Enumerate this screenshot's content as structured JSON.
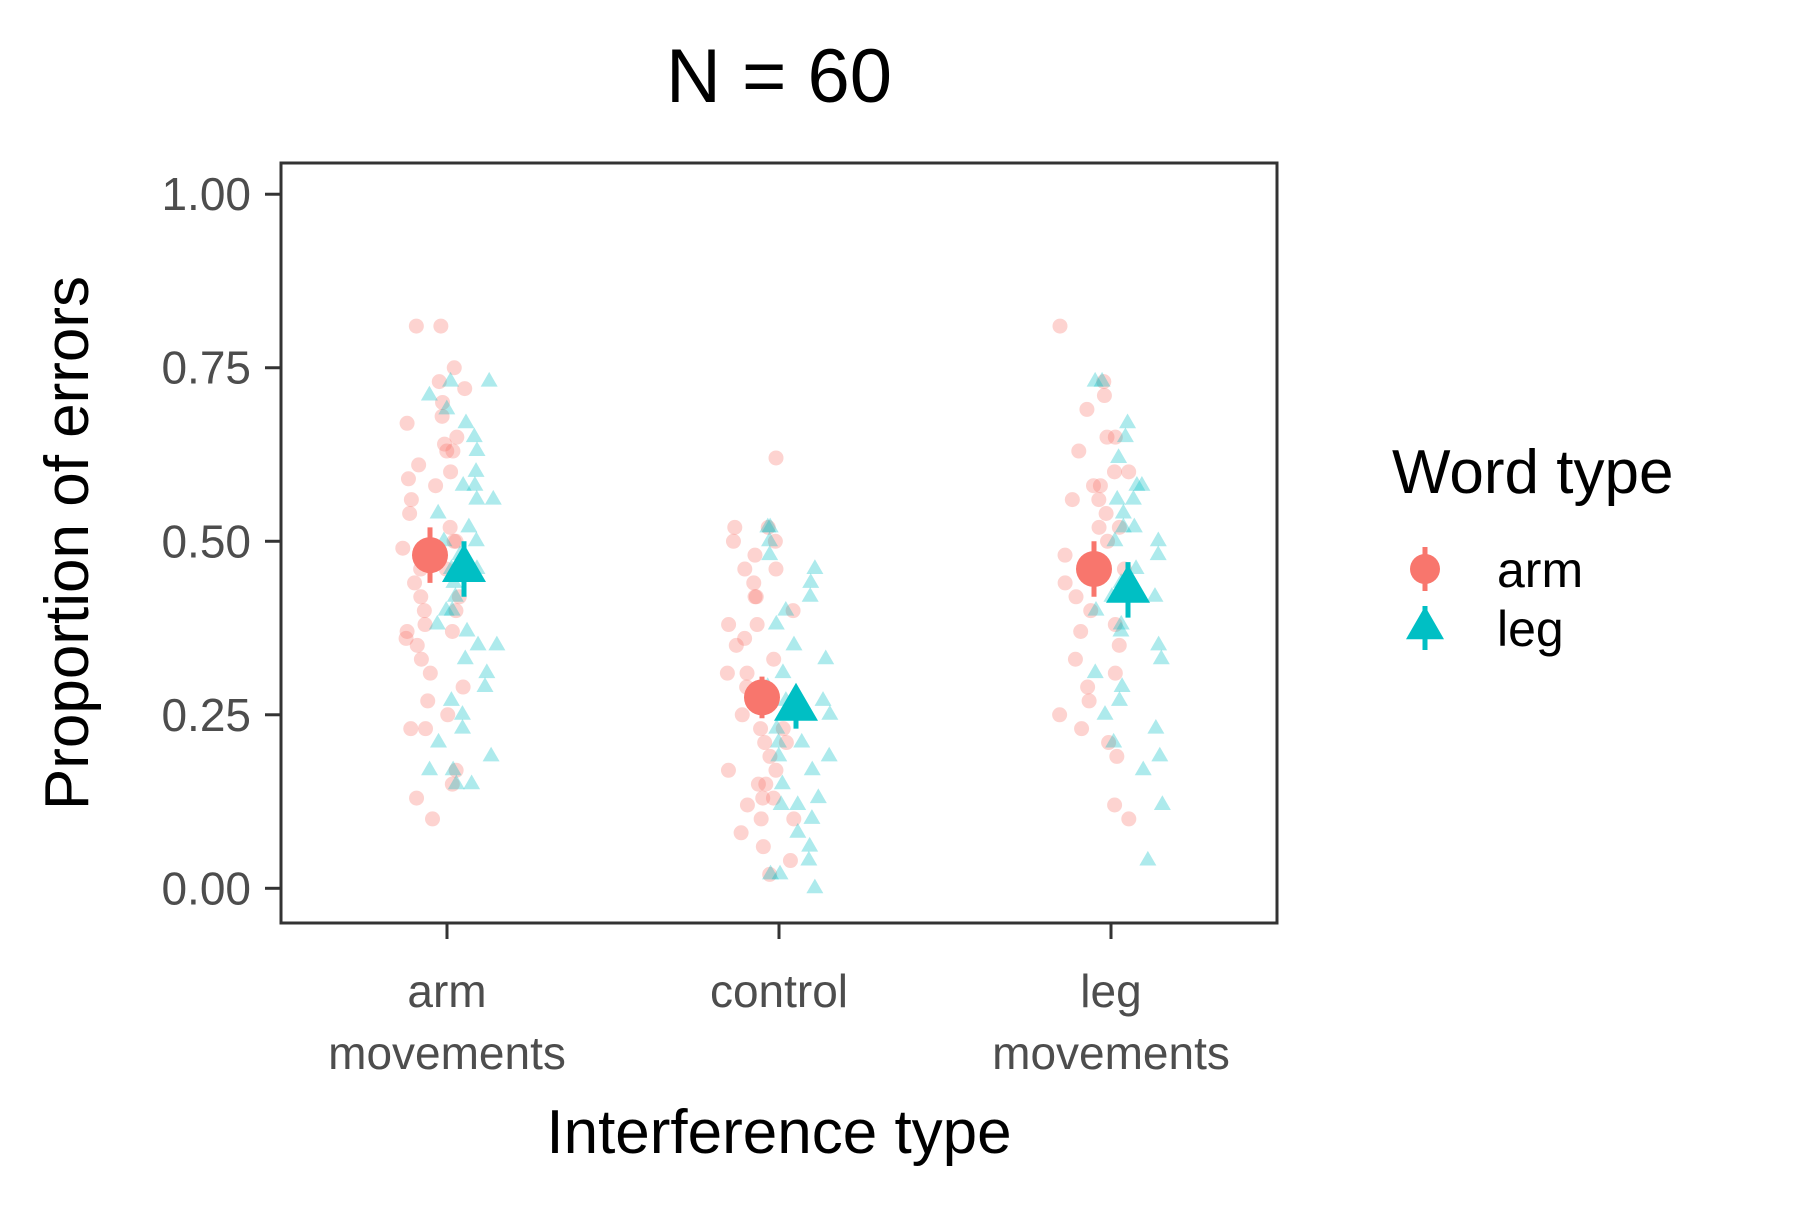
{
  "chart_data": {
    "type": "scatter",
    "title": "N = 60",
    "xlabel": "Interference type",
    "ylabel": "Proportion of errors",
    "categories": [
      [
        "arm",
        "movements"
      ],
      [
        "control"
      ],
      [
        "leg",
        "movements"
      ]
    ],
    "ylim": [
      -0.05,
      1.045
    ],
    "yticks": [
      0.0,
      0.25,
      0.5,
      0.75,
      1.0
    ],
    "ytick_labels": [
      "0.00",
      "0.25",
      "0.50",
      "0.75",
      "1.00"
    ],
    "grid": false,
    "legend": {
      "title": "Word type",
      "placement": "right",
      "entries": [
        "arm",
        "leg"
      ]
    },
    "colors": {
      "arm": "#F8766D",
      "leg": "#00BFC4"
    },
    "series": [
      {
        "name": "arm",
        "shape": "circle",
        "means": [
          0.48,
          0.275,
          0.46
        ],
        "errors": [
          0.04,
          0.03,
          0.04
        ],
        "points": [
          [
            0.81,
            0.81,
            0.73,
            0.72,
            0.7,
            0.68,
            0.67,
            0.65,
            0.64,
            0.63,
            0.63,
            0.61,
            0.6,
            0.59,
            0.58,
            0.56,
            0.54,
            0.52,
            0.5,
            0.5,
            0.49,
            0.48,
            0.46,
            0.46,
            0.44,
            0.42,
            0.42,
            0.4,
            0.4,
            0.38,
            0.37,
            0.37,
            0.36,
            0.35,
            0.33,
            0.31,
            0.29,
            0.27,
            0.25,
            0.23,
            0.23,
            0.17,
            0.15,
            0.13,
            0.1,
            0.75
          ],
          [
            0.62,
            0.52,
            0.52,
            0.5,
            0.5,
            0.48,
            0.46,
            0.46,
            0.44,
            0.42,
            0.42,
            0.4,
            0.38,
            0.38,
            0.36,
            0.35,
            0.33,
            0.31,
            0.31,
            0.29,
            0.27,
            0.25,
            0.23,
            0.23,
            0.21,
            0.21,
            0.19,
            0.17,
            0.17,
            0.15,
            0.15,
            0.13,
            0.13,
            0.12,
            0.1,
            0.1,
            0.08,
            0.06,
            0.04,
            0.02
          ],
          [
            0.81,
            0.73,
            0.71,
            0.69,
            0.65,
            0.65,
            0.63,
            0.6,
            0.6,
            0.58,
            0.56,
            0.56,
            0.54,
            0.52,
            0.52,
            0.5,
            0.48,
            0.46,
            0.44,
            0.42,
            0.4,
            0.38,
            0.37,
            0.35,
            0.33,
            0.31,
            0.29,
            0.27,
            0.25,
            0.23,
            0.21,
            0.19,
            0.12,
            0.1,
            0.58
          ]
        ]
      },
      {
        "name": "leg",
        "shape": "triangle",
        "means": [
          0.46,
          0.26,
          0.43
        ],
        "errors": [
          0.04,
          0.03,
          0.04
        ],
        "points": [
          [
            0.73,
            0.73,
            0.71,
            0.69,
            0.67,
            0.65,
            0.63,
            0.6,
            0.58,
            0.58,
            0.56,
            0.56,
            0.54,
            0.52,
            0.5,
            0.5,
            0.48,
            0.46,
            0.46,
            0.44,
            0.42,
            0.4,
            0.4,
            0.38,
            0.37,
            0.35,
            0.35,
            0.33,
            0.31,
            0.29,
            0.27,
            0.25,
            0.23,
            0.21,
            0.19,
            0.17,
            0.17,
            0.15,
            0.15
          ],
          [
            0.52,
            0.52,
            0.5,
            0.48,
            0.46,
            0.44,
            0.42,
            0.4,
            0.38,
            0.35,
            0.33,
            0.31,
            0.29,
            0.27,
            0.27,
            0.25,
            0.23,
            0.21,
            0.21,
            0.19,
            0.19,
            0.17,
            0.15,
            0.13,
            0.12,
            0.12,
            0.1,
            0.08,
            0.06,
            0.04,
            0.02,
            0.02,
            0.0
          ],
          [
            0.73,
            0.73,
            0.67,
            0.65,
            0.62,
            0.58,
            0.58,
            0.56,
            0.56,
            0.54,
            0.52,
            0.52,
            0.5,
            0.5,
            0.48,
            0.46,
            0.44,
            0.42,
            0.42,
            0.4,
            0.38,
            0.37,
            0.35,
            0.33,
            0.31,
            0.29,
            0.27,
            0.25,
            0.23,
            0.21,
            0.19,
            0.17,
            0.12,
            0.04
          ]
        ]
      }
    ]
  }
}
